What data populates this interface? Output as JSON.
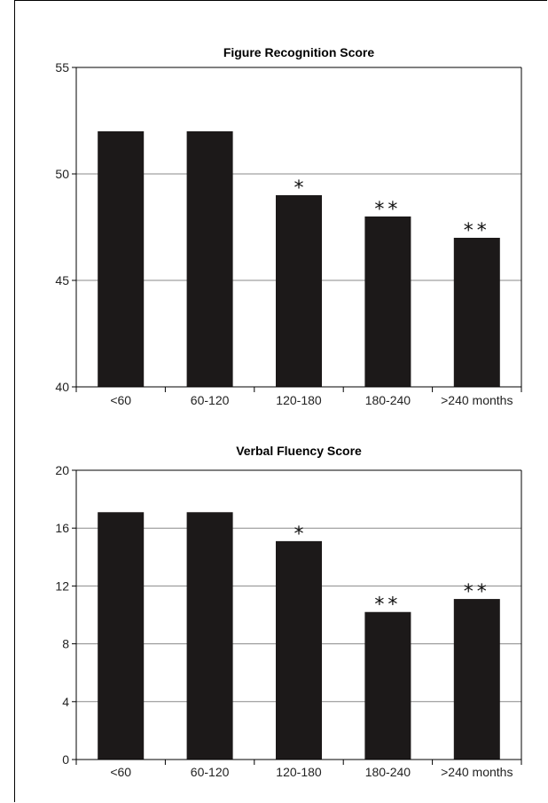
{
  "chart_data": [
    {
      "type": "bar",
      "title": "Figure Recognition Score",
      "categories": [
        "<60",
        "60-120",
        "120-180",
        "180-240",
        ">240 months"
      ],
      "values": [
        52,
        52,
        49,
        48,
        47
      ],
      "annotations": [
        "",
        "",
        "*",
        "**",
        "**"
      ],
      "ylim": [
        40,
        55
      ],
      "yticks": [
        40,
        45,
        50,
        55
      ],
      "grid": true,
      "bar_color": "#1c1919"
    },
    {
      "type": "bar",
      "title": "Verbal Fluency Score",
      "categories": [
        "<60",
        "60-120",
        "120-180",
        "180-240",
        ">240 months"
      ],
      "values": [
        17.1,
        17.1,
        15.1,
        10.2,
        11.1
      ],
      "annotations": [
        "",
        "",
        "*",
        "**",
        "**"
      ],
      "ylim": [
        0,
        20
      ],
      "yticks": [
        0,
        4,
        8,
        12,
        16,
        20
      ],
      "grid": true,
      "bar_color": "#1c1919"
    }
  ]
}
